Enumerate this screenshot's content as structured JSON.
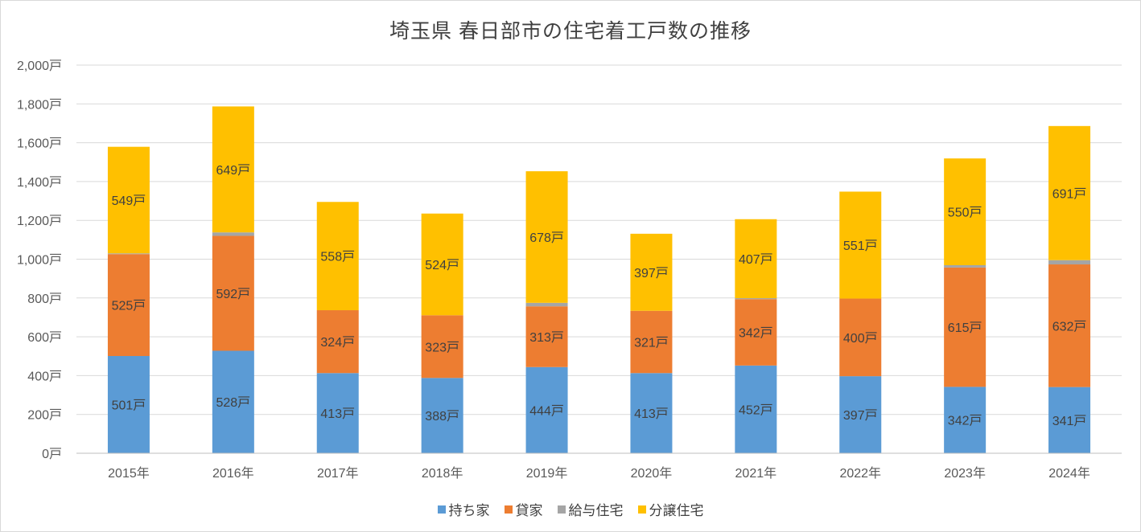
{
  "chart_data": {
    "type": "bar",
    "stacked": true,
    "title": "埼玉県 春日部市の住宅着工戸数の推移",
    "xlabel": "",
    "ylabel": "",
    "categories": [
      "2015年",
      "2016年",
      "2017年",
      "2018年",
      "2019年",
      "2020年",
      "2021年",
      "2022年",
      "2023年",
      "2024年"
    ],
    "series": [
      {
        "name": "持ち家",
        "color": "#5b9bd5",
        "values": [
          501,
          528,
          413,
          388,
          444,
          413,
          452,
          397,
          342,
          341
        ],
        "labels": [
          "501戸",
          "528戸",
          "413戸",
          "388戸",
          "444戸",
          "413戸",
          "452戸",
          "397戸",
          "342戸",
          "341戸"
        ]
      },
      {
        "name": "貸家",
        "color": "#ed7d31",
        "values": [
          525,
          592,
          324,
          323,
          313,
          321,
          342,
          400,
          615,
          632
        ],
        "labels": [
          "525戸",
          "592戸",
          "324戸",
          "323戸",
          "313戸",
          "321戸",
          "342戸",
          "400戸",
          "615戸",
          "632戸"
        ]
      },
      {
        "name": "給与住宅",
        "color": "#a5a5a5",
        "values": [
          4,
          18,
          0,
          0,
          18,
          0,
          5,
          0,
          12,
          22
        ],
        "labels": []
      },
      {
        "name": "分譲住宅",
        "color": "#ffc000",
        "values": [
          549,
          649,
          558,
          524,
          678,
          397,
          407,
          551,
          550,
          691
        ],
        "labels": [
          "549戸",
          "649戸",
          "558戸",
          "524戸",
          "678戸",
          "397戸",
          "407戸",
          "551戸",
          "550戸",
          "691戸"
        ]
      }
    ],
    "ylim": [
      0,
      2000
    ],
    "yticks": [
      0,
      200,
      400,
      600,
      800,
      1000,
      1200,
      1400,
      1600,
      1800,
      2000
    ],
    "ytick_labels": [
      "0戸",
      "200戸",
      "400戸",
      "600戸",
      "800戸",
      "1,000戸",
      "1,200戸",
      "1,400戸",
      "1,600戸",
      "1,800戸",
      "2,000戸"
    ],
    "grid": true,
    "legend_position": "bottom"
  }
}
